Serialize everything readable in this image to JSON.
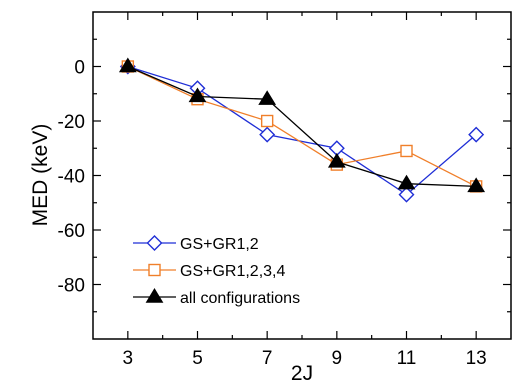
{
  "chart_data": {
    "type": "line",
    "title": "",
    "xlabel": "2J",
    "ylabel": "MED (keV)",
    "xlim": [
      2,
      14
    ],
    "ylim": [
      -100,
      20
    ],
    "xticks": [
      3,
      5,
      7,
      9,
      11,
      13
    ],
    "yticks": [
      0,
      -20,
      -40,
      -60,
      -80
    ],
    "grid": false,
    "legend_position": "bottom-left",
    "series": [
      {
        "name": "GS+GR1,2",
        "color": "#1f2ed6",
        "marker": "diamond-open",
        "x": [
          3,
          5,
          7,
          9,
          11,
          13
        ],
        "y": [
          0,
          -8,
          -25,
          -30,
          -47,
          -25
        ]
      },
      {
        "name": "GS+GR1,2,3,4",
        "color": "#f07f2a",
        "marker": "square-open",
        "x": [
          3,
          5,
          7,
          9,
          11,
          13
        ],
        "y": [
          0,
          -12,
          -20,
          -36,
          -31,
          -44
        ]
      },
      {
        "name": "all configurations",
        "color": "#000000",
        "marker": "triangle-filled",
        "x": [
          3,
          5,
          7,
          9,
          11,
          13
        ],
        "y": [
          0,
          -11,
          -12,
          -35,
          -43,
          -44
        ]
      }
    ]
  }
}
